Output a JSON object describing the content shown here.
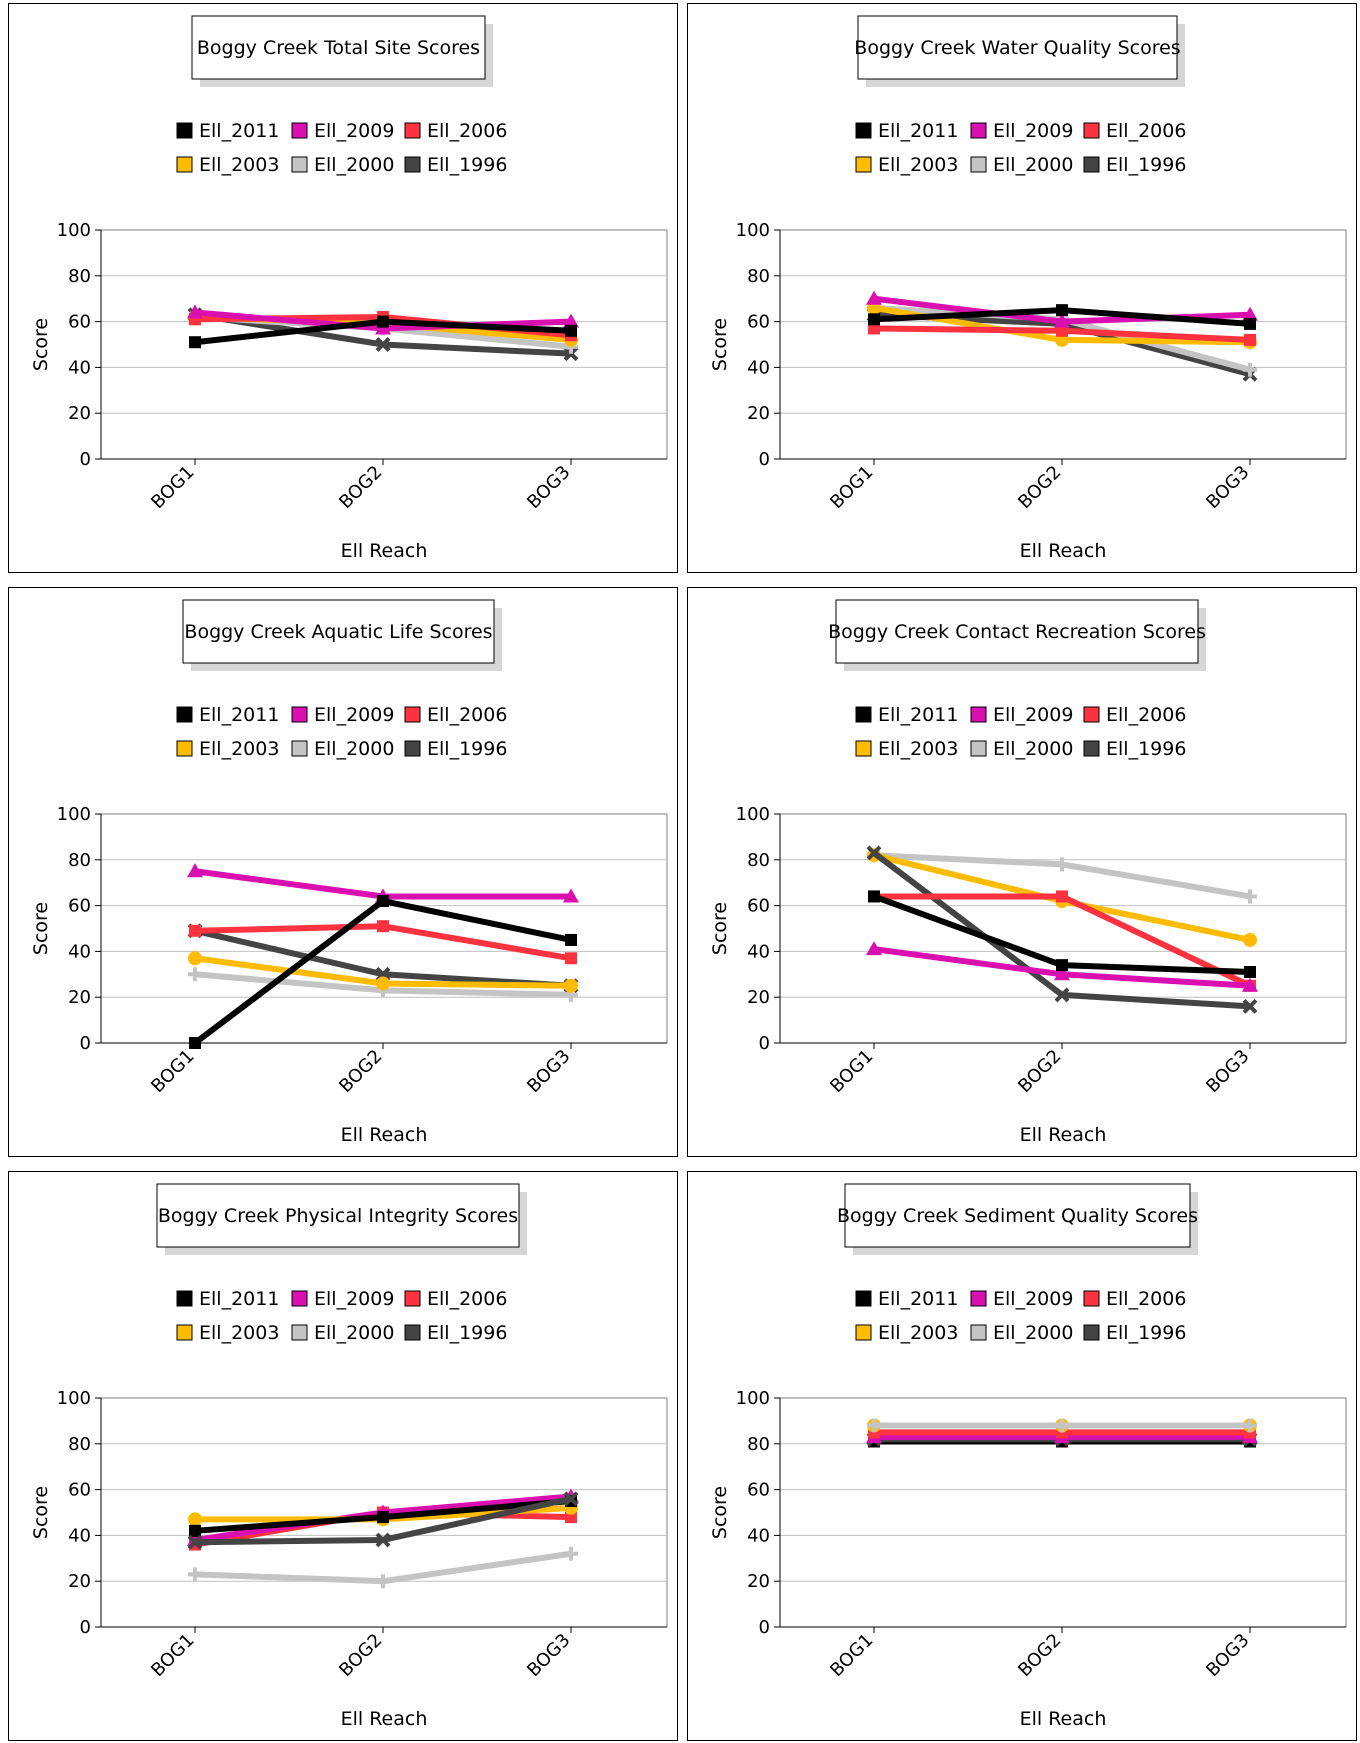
{
  "palette": {
    "Ell_2011": "#000000",
    "Ell_2009": "#d90fb0",
    "Ell_2006": "#ff333f",
    "Ell_2003": "#ffbb00",
    "Ell_2000": "#c4c4c4",
    "Ell_1996": "#444444"
  },
  "chart_data": [
    {
      "type": "line",
      "title": "Boggy Creek Total Site Scores",
      "xlabel": "Ell Reach",
      "ylabel": "Score",
      "ylim": [
        0,
        100
      ],
      "yticks": [
        0,
        20,
        40,
        60,
        80,
        100
      ],
      "grid": true,
      "legend": "top",
      "categories": [
        "BOG1",
        "BOG2",
        "BOG3"
      ],
      "series": [
        {
          "name": "Ell_1996",
          "values": [
            63,
            50,
            46
          ]
        },
        {
          "name": "Ell_2000",
          "values": [
            62,
            57,
            49
          ]
        },
        {
          "name": "Ell_2003",
          "values": [
            62,
            59,
            52
          ]
        },
        {
          "name": "Ell_2006",
          "values": [
            61,
            62,
            54
          ]
        },
        {
          "name": "Ell_2009",
          "values": [
            64,
            57,
            60
          ]
        },
        {
          "name": "Ell_2011",
          "values": [
            51,
            60,
            56
          ]
        }
      ]
    },
    {
      "type": "line",
      "title": "Boggy Creek Water Quality Scores",
      "xlabel": "Ell Reach",
      "ylabel": "Score",
      "ylim": [
        0,
        100
      ],
      "yticks": [
        0,
        20,
        40,
        60,
        80,
        100
      ],
      "grid": true,
      "legend": "top",
      "categories": [
        "BOG1",
        "BOG2",
        "BOG3"
      ],
      "series": [
        {
          "name": "Ell_1996",
          "values": [
            63,
            59,
            37
          ]
        },
        {
          "name": "Ell_2000",
          "values": [
            66,
            61,
            39
          ]
        },
        {
          "name": "Ell_2003",
          "values": [
            66,
            52,
            51
          ]
        },
        {
          "name": "Ell_2006",
          "values": [
            57,
            56,
            52
          ]
        },
        {
          "name": "Ell_2009",
          "values": [
            70,
            60,
            63
          ]
        },
        {
          "name": "Ell_2011",
          "values": [
            61,
            65,
            59
          ]
        }
      ]
    },
    {
      "type": "line",
      "title": "Boggy Creek Aquatic Life Scores",
      "xlabel": "Ell Reach",
      "ylabel": "Score",
      "ylim": [
        0,
        100
      ],
      "yticks": [
        0,
        20,
        40,
        60,
        80,
        100
      ],
      "grid": true,
      "legend": "top",
      "categories": [
        "BOG1",
        "BOG2",
        "BOG3"
      ],
      "series": [
        {
          "name": "Ell_1996",
          "values": [
            49,
            30,
            25
          ]
        },
        {
          "name": "Ell_2000",
          "values": [
            30,
            23,
            21
          ]
        },
        {
          "name": "Ell_2003",
          "values": [
            37,
            26,
            25
          ]
        },
        {
          "name": "Ell_2006",
          "values": [
            49,
            51,
            37
          ]
        },
        {
          "name": "Ell_2009",
          "values": [
            75,
            64,
            64
          ]
        },
        {
          "name": "Ell_2011",
          "values": [
            0,
            62,
            45
          ]
        }
      ]
    },
    {
      "type": "line",
      "title": "Boggy Creek Contact Recreation Scores",
      "xlabel": "Ell Reach",
      "ylabel": "Score",
      "ylim": [
        0,
        100
      ],
      "yticks": [
        0,
        20,
        40,
        60,
        80,
        100
      ],
      "grid": true,
      "legend": "top",
      "categories": [
        "BOG1",
        "BOG2",
        "BOG3"
      ],
      "series": [
        {
          "name": "Ell_2000",
          "values": [
            82,
            78,
            64
          ]
        },
        {
          "name": "Ell_2003",
          "values": [
            82,
            62,
            45
          ]
        },
        {
          "name": "Ell_1996",
          "values": [
            83,
            21,
            16
          ]
        },
        {
          "name": "Ell_2006",
          "values": [
            64,
            64,
            25
          ]
        },
        {
          "name": "Ell_2009",
          "values": [
            41,
            30,
            25
          ]
        },
        {
          "name": "Ell_2011",
          "values": [
            64,
            34,
            31
          ]
        }
      ]
    },
    {
      "type": "line",
      "title": "Boggy Creek Physical Integrity Scores",
      "xlabel": "Ell Reach",
      "ylabel": "Score",
      "ylim": [
        0,
        100
      ],
      "yticks": [
        0,
        20,
        40,
        60,
        80,
        100
      ],
      "grid": true,
      "legend": "top",
      "categories": [
        "BOG1",
        "BOG2",
        "BOG3"
      ],
      "series": [
        {
          "name": "Ell_2000",
          "values": [
            23,
            20,
            32
          ]
        },
        {
          "name": "Ell_2006",
          "values": [
            36,
            50,
            48
          ]
        },
        {
          "name": "Ell_2009",
          "values": [
            38,
            50,
            57
          ]
        },
        {
          "name": "Ell_2003",
          "values": [
            47,
            47,
            52
          ]
        },
        {
          "name": "Ell_2011",
          "values": [
            42,
            48,
            55
          ]
        },
        {
          "name": "Ell_1996",
          "values": [
            37,
            38,
            56
          ]
        }
      ]
    },
    {
      "type": "line",
      "title": "Boggy Creek Sediment Quality Scores",
      "xlabel": "Ell Reach",
      "ylabel": "Score",
      "ylim": [
        0,
        100
      ],
      "yticks": [
        0,
        20,
        40,
        60,
        80,
        100
      ],
      "grid": true,
      "legend": "top",
      "categories": [
        "BOG1",
        "BOG2",
        "BOG3"
      ],
      "series": [
        {
          "name": "Ell_2011",
          "values": [
            81,
            81,
            81
          ]
        },
        {
          "name": "Ell_1996",
          "values": [
            82,
            82,
            82
          ]
        },
        {
          "name": "Ell_2009",
          "values": [
            83,
            83,
            83
          ]
        },
        {
          "name": "Ell_2006",
          "values": [
            85,
            85,
            85
          ]
        },
        {
          "name": "Ell_2003",
          "values": [
            88,
            88,
            88
          ]
        },
        {
          "name": "Ell_2000",
          "values": [
            88,
            88,
            88
          ]
        }
      ]
    }
  ]
}
